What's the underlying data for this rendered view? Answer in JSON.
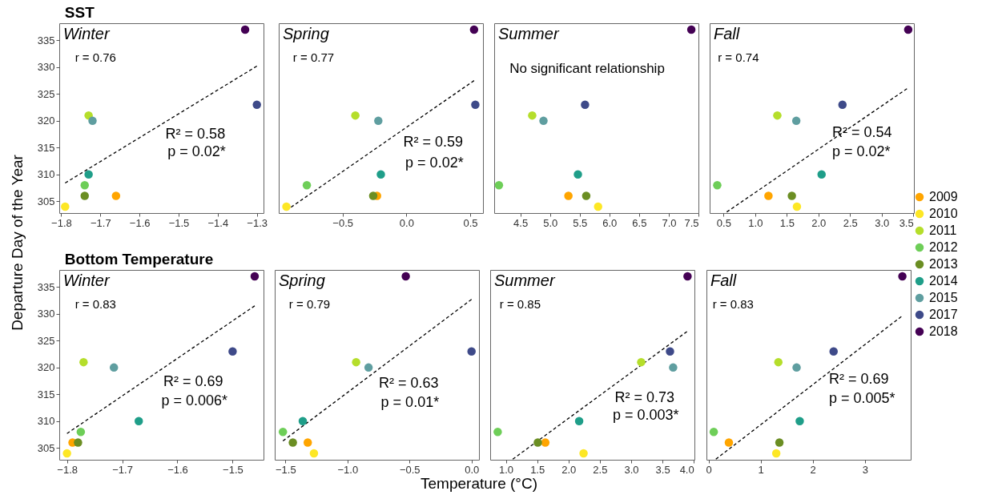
{
  "chart_data": [
    {
      "type": "scatter",
      "title": "SST",
      "subtitle": "Winter",
      "ylabel": "Departure Day of the Year",
      "legend": "right",
      "marker": "circle",
      "xlim": [
        -1.805,
        -1.283
      ],
      "xticks": [
        -1.8,
        -1.7,
        -1.6,
        -1.5,
        -1.4,
        -1.3
      ],
      "ylim": [
        302.8,
        338.2
      ],
      "yticks": [
        305,
        310,
        315,
        320,
        325,
        330,
        335
      ],
      "annotations": [
        "r = 0.76",
        "R² = 0.58",
        "p = 0.02*"
      ],
      "series": [
        {
          "name": "2009",
          "color": "#ffa500",
          "x": [
            -1.66
          ],
          "values": [
            306
          ]
        },
        {
          "name": "2010",
          "color": "#fde725",
          "x": [
            -1.79
          ],
          "values": [
            304
          ]
        },
        {
          "name": "2011",
          "color": "#b5de2b",
          "x": [
            -1.73
          ],
          "values": [
            321
          ]
        },
        {
          "name": "2012",
          "color": "#6ece58",
          "x": [
            -1.74
          ],
          "values": [
            308
          ]
        },
        {
          "name": "2013",
          "color": "#6b8e23",
          "x": [
            -1.74
          ],
          "values": [
            306
          ]
        },
        {
          "name": "2014",
          "color": "#1f9e89",
          "x": [
            -1.73
          ],
          "values": [
            310
          ]
        },
        {
          "name": "2015",
          "color": "#5f9ea0",
          "x": [
            -1.72
          ],
          "values": [
            320
          ]
        },
        {
          "name": "2017",
          "color": "#3e4a89",
          "x": [
            -1.3
          ],
          "values": [
            323
          ]
        },
        {
          "name": "2018",
          "color": "#440154",
          "x": [
            -1.33
          ],
          "values": [
            337
          ]
        },
        {
          "type": "line",
          "color": "#000000",
          "line_style": "dashed",
          "marker": "none",
          "x": [
            -1.79,
            -1.3
          ],
          "values": [
            308.4,
            330.2
          ]
        }
      ]
    },
    {
      "type": "scatter",
      "subtitle": "Spring",
      "marker": "circle",
      "tick_labels": "x",
      "xlim": [
        -1.0,
        0.6
      ],
      "xticks": [
        -0.5,
        {
          "value": 0,
          "label": "0.0"
        },
        0.5
      ],
      "ylim": [
        302.8,
        338.2
      ],
      "annotations": [
        "r = 0.77",
        "R² = 0.59",
        "p = 0.02*"
      ],
      "series": [
        {
          "color": "#ffa500",
          "x": [
            -0.23
          ],
          "values": [
            306
          ]
        },
        {
          "color": "#fde725",
          "x": [
            -0.94
          ],
          "values": [
            304
          ]
        },
        {
          "color": "#b5de2b",
          "x": [
            -0.4
          ],
          "values": [
            321
          ]
        },
        {
          "color": "#6ece58",
          "x": [
            -0.78
          ],
          "values": [
            308
          ]
        },
        {
          "color": "#6b8e23",
          "x": [
            -0.26
          ],
          "values": [
            306
          ]
        },
        {
          "color": "#1f9e89",
          "x": [
            -0.2
          ],
          "values": [
            310
          ]
        },
        {
          "color": "#5f9ea0",
          "x": [
            -0.22
          ],
          "values": [
            320
          ]
        },
        {
          "color": "#3e4a89",
          "x": [
            0.54
          ],
          "values": [
            323
          ]
        },
        {
          "color": "#440154",
          "x": [
            0.53
          ],
          "values": [
            337
          ]
        },
        {
          "type": "line",
          "color": "#000000",
          "line_style": "dashed",
          "marker": "none",
          "x": [
            -0.94,
            0.53
          ],
          "values": [
            303.3,
            327.5
          ]
        }
      ]
    },
    {
      "type": "scatter",
      "subtitle": "Summer",
      "marker": "circle",
      "tick_labels": "x",
      "xlim": [
        4.06,
        7.5
      ],
      "xticks": [
        4.5,
        {
          "value": 5,
          "label": "5.0"
        },
        5.5,
        {
          "value": 6,
          "label": "6.0"
        },
        6.5,
        {
          "value": 7,
          "label": "7.0"
        },
        7.5
      ],
      "ylim": [
        302.8,
        338.2
      ],
      "annotations": [
        "No significant relationship"
      ],
      "series": [
        {
          "color": "#ffa500",
          "x": [
            5.31
          ],
          "values": [
            306
          ]
        },
        {
          "color": "#fde725",
          "x": [
            5.81
          ],
          "values": [
            304
          ]
        },
        {
          "color": "#b5de2b",
          "x": [
            4.7
          ],
          "values": [
            321
          ]
        },
        {
          "color": "#6ece58",
          "x": [
            4.14
          ],
          "values": [
            308
          ]
        },
        {
          "color": "#6b8e23",
          "x": [
            5.61
          ],
          "values": [
            306
          ]
        },
        {
          "color": "#1f9e89",
          "x": [
            5.47
          ],
          "values": [
            310
          ]
        },
        {
          "color": "#5f9ea0",
          "x": [
            4.89
          ],
          "values": [
            320
          ]
        },
        {
          "color": "#3e4a89",
          "x": [
            5.59
          ],
          "values": [
            323
          ]
        },
        {
          "color": "#440154",
          "x": [
            7.38
          ],
          "values": [
            337
          ]
        }
      ]
    },
    {
      "type": "scatter",
      "subtitle": "Fall",
      "marker": "circle",
      "tick_labels": "x",
      "xlim": [
        0.28,
        3.51
      ],
      "xticks": [
        0.5,
        {
          "value": 1,
          "label": "1.0"
        },
        1.5,
        {
          "value": 2,
          "label": "2.0"
        },
        2.5,
        {
          "value": 3,
          "label": "3.0"
        },
        3.5
      ],
      "ylim": [
        302.8,
        338.2
      ],
      "annotations": [
        "r = 0.74",
        "R² = 0.54",
        "p = 0.02*"
      ],
      "series": [
        {
          "color": "#ffa500",
          "x": [
            1.21
          ],
          "values": [
            306
          ]
        },
        {
          "color": "#fde725",
          "x": [
            1.66
          ],
          "values": [
            304
          ]
        },
        {
          "color": "#b5de2b",
          "x": [
            1.35
          ],
          "values": [
            321
          ]
        },
        {
          "color": "#6ece58",
          "x": [
            0.4
          ],
          "values": [
            308
          ]
        },
        {
          "color": "#6b8e23",
          "x": [
            1.58
          ],
          "values": [
            306
          ]
        },
        {
          "color": "#1f9e89",
          "x": [
            2.05
          ],
          "values": [
            310
          ]
        },
        {
          "color": "#5f9ea0",
          "x": [
            1.65
          ],
          "values": [
            320
          ]
        },
        {
          "color": "#3e4a89",
          "x": [
            2.38
          ],
          "values": [
            323
          ]
        },
        {
          "color": "#440154",
          "x": [
            3.42
          ],
          "values": [
            337
          ]
        },
        {
          "type": "line",
          "color": "#000000",
          "line_style": "dashed",
          "marker": "none",
          "x": [
            0.55,
            3.4
          ],
          "values": [
            303.0,
            326.0
          ]
        }
      ]
    },
    {
      "type": "scatter",
      "title": "Bottom Temperature",
      "subtitle": "Winter",
      "marker": "circle",
      "xlim": [
        -1.814,
        -1.444
      ],
      "xticks": [
        -1.8,
        -1.7,
        -1.6,
        -1.5
      ],
      "ylim": [
        302.8,
        338.2
      ],
      "yticks": [
        305,
        310,
        315,
        320,
        325,
        330,
        335
      ],
      "annotations": [
        "r = 0.83",
        "R² = 0.69",
        "p = 0.006*"
      ],
      "series": [
        {
          "color": "#ffa500",
          "x": [
            -1.79
          ],
          "values": [
            306
          ]
        },
        {
          "color": "#fde725",
          "x": [
            -1.8
          ],
          "values": [
            304
          ]
        },
        {
          "color": "#b5de2b",
          "x": [
            -1.77
          ],
          "values": [
            321
          ]
        },
        {
          "color": "#6ece58",
          "x": [
            -1.775
          ],
          "values": [
            308
          ]
        },
        {
          "color": "#6b8e23",
          "x": [
            -1.78
          ],
          "values": [
            306
          ]
        },
        {
          "color": "#1f9e89",
          "x": [
            -1.67
          ],
          "values": [
            310
          ]
        },
        {
          "color": "#5f9ea0",
          "x": [
            -1.715
          ],
          "values": [
            320
          ]
        },
        {
          "color": "#3e4a89",
          "x": [
            -1.5
          ],
          "values": [
            323
          ]
        },
        {
          "color": "#440154",
          "x": [
            -1.46
          ],
          "values": [
            337
          ]
        },
        {
          "type": "line",
          "color": "#000000",
          "line_style": "dashed",
          "marker": "none",
          "x": [
            -1.8,
            -1.46
          ],
          "values": [
            307.7,
            331.5
          ]
        }
      ]
    },
    {
      "type": "scatter",
      "subtitle": "Spring",
      "xlabel": "Temperature (°C)",
      "marker": "circle",
      "tick_labels": "x",
      "xlim": [
        -1.586,
        0.06
      ],
      "xticks": [
        -1.5,
        {
          "value": -1,
          "label": "−1.0"
        },
        -0.5,
        {
          "value": 0,
          "label": "0.0"
        }
      ],
      "ylim": [
        302.8,
        338.2
      ],
      "annotations": [
        "r = 0.79",
        "R² = 0.63",
        "p = 0.01*"
      ],
      "series": [
        {
          "color": "#ffa500",
          "x": [
            -1.32
          ],
          "values": [
            306
          ]
        },
        {
          "color": "#fde725",
          "x": [
            -1.27
          ],
          "values": [
            304
          ]
        },
        {
          "color": "#b5de2b",
          "x": [
            -0.93
          ],
          "values": [
            321
          ]
        },
        {
          "color": "#6ece58",
          "x": [
            -1.52
          ],
          "values": [
            308
          ]
        },
        {
          "color": "#6b8e23",
          "x": [
            -1.44
          ],
          "values": [
            306
          ]
        },
        {
          "color": "#1f9e89",
          "x": [
            -1.36
          ],
          "values": [
            310
          ]
        },
        {
          "color": "#5f9ea0",
          "x": [
            -0.83
          ],
          "values": [
            320
          ]
        },
        {
          "color": "#3e4a89",
          "x": [
            0.0
          ],
          "values": [
            323
          ]
        },
        {
          "color": "#440154",
          "x": [
            -0.53
          ],
          "values": [
            337
          ]
        },
        {
          "type": "line",
          "color": "#000000",
          "line_style": "dashed",
          "marker": "none",
          "x": [
            -1.52,
            0.0
          ],
          "values": [
            306.3,
            332.7
          ]
        }
      ]
    },
    {
      "type": "scatter",
      "subtitle": "Summer",
      "marker": "circle",
      "tick_labels": "x",
      "xlim": [
        0.75,
        4.01
      ],
      "xticks": [
        {
          "value": 1,
          "label": "1.0"
        },
        1.5,
        {
          "value": 2,
          "label": "2.0"
        },
        2.5,
        {
          "value": 3,
          "label": "3.0"
        },
        3.5,
        {
          "value": 4,
          "label": "4.0"
        }
      ],
      "ylim": [
        302.8,
        338.2
      ],
      "annotations": [
        "r = 0.85",
        "R² = 0.73",
        "p = 0.003*"
      ],
      "series": [
        {
          "color": "#ffa500",
          "x": [
            1.63
          ],
          "values": [
            306
          ]
        },
        {
          "color": "#fde725",
          "x": [
            2.24
          ],
          "values": [
            304
          ]
        },
        {
          "color": "#b5de2b",
          "x": [
            3.16
          ],
          "values": [
            321
          ]
        },
        {
          "color": "#6ece58",
          "x": [
            0.87
          ],
          "values": [
            308
          ]
        },
        {
          "color": "#6b8e23",
          "x": [
            1.51
          ],
          "values": [
            306
          ]
        },
        {
          "color": "#1f9e89",
          "x": [
            2.17
          ],
          "values": [
            310
          ]
        },
        {
          "color": "#5f9ea0",
          "x": [
            3.67
          ],
          "values": [
            320
          ]
        },
        {
          "color": "#3e4a89",
          "x": [
            3.62
          ],
          "values": [
            323
          ]
        },
        {
          "color": "#440154",
          "x": [
            3.9
          ],
          "values": [
            337
          ]
        },
        {
          "type": "line",
          "color": "#000000",
          "line_style": "dashed",
          "marker": "none",
          "x": [
            1.11,
            3.89
          ],
          "values": [
            302.9,
            326.7
          ]
        }
      ]
    },
    {
      "type": "scatter",
      "subtitle": "Fall",
      "marker": "circle",
      "tick_labels": "x",
      "xlim": [
        -0.04,
        3.88
      ],
      "xticks": [
        0,
        1,
        2,
        3
      ],
      "ylim": [
        302.8,
        338.2
      ],
      "annotations": [
        "r = 0.83",
        "R² = 0.69",
        "p = 0.005*"
      ],
      "series": [
        {
          "color": "#ffa500",
          "x": [
            0.39
          ],
          "values": [
            306
          ]
        },
        {
          "color": "#fde725",
          "x": [
            1.3
          ],
          "values": [
            304
          ]
        },
        {
          "color": "#b5de2b",
          "x": [
            1.34
          ],
          "values": [
            321
          ]
        },
        {
          "color": "#6ece58",
          "x": [
            0.1
          ],
          "values": [
            308
          ]
        },
        {
          "color": "#6b8e23",
          "x": [
            1.36
          ],
          "values": [
            306
          ]
        },
        {
          "color": "#1f9e89",
          "x": [
            1.75
          ],
          "values": [
            310
          ]
        },
        {
          "color": "#5f9ea0",
          "x": [
            1.69
          ],
          "values": [
            320
          ]
        },
        {
          "color": "#3e4a89",
          "x": [
            2.4
          ],
          "values": [
            323
          ]
        },
        {
          "color": "#440154",
          "x": [
            3.72
          ],
          "values": [
            337
          ]
        },
        {
          "type": "line",
          "color": "#000000",
          "line_style": "dashed",
          "marker": "none",
          "x": [
            0.14,
            3.7
          ],
          "values": [
            302.9,
            329.5
          ]
        }
      ]
    }
  ]
}
